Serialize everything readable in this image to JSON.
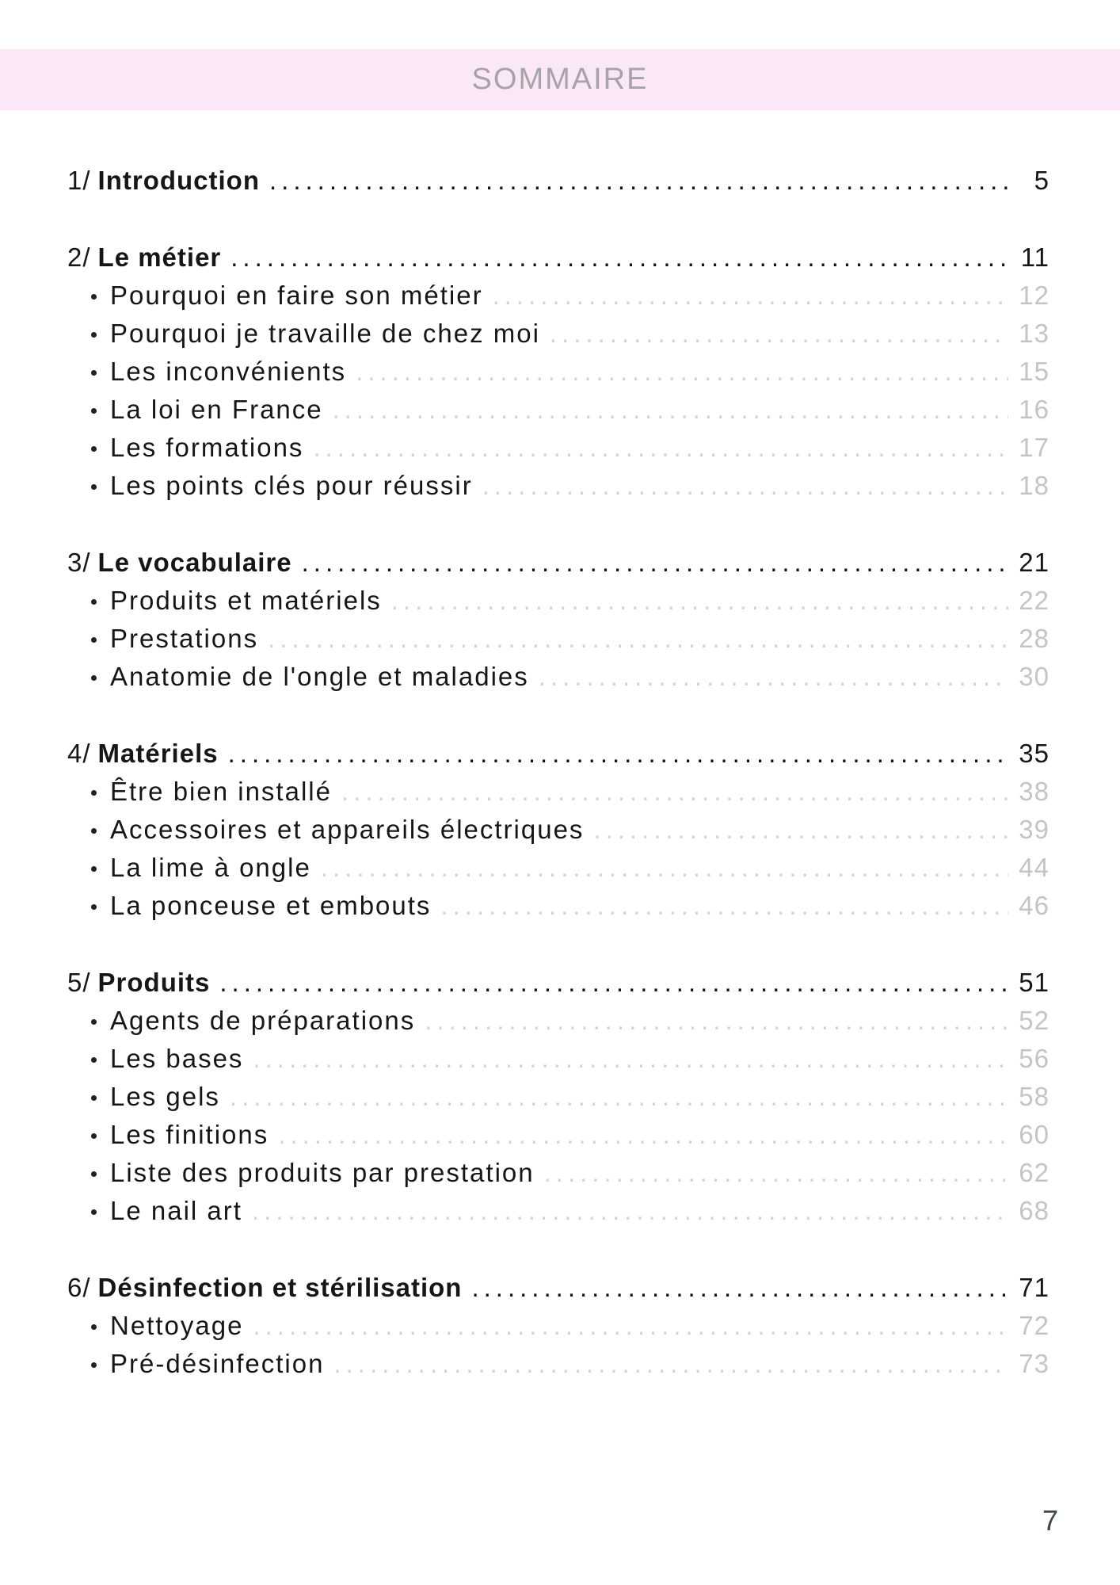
{
  "header": {
    "title": "SOMMAIRE"
  },
  "footer": {
    "page_number": "7"
  },
  "colors": {
    "band_pink": "#fae8f8",
    "header_gray": "#a7a3a7",
    "text_black": "#161616",
    "sub_dots_gray": "#d4d4d4",
    "sub_page_gray": "#c4c4c4",
    "folio_green": "#3e4b44"
  },
  "toc": {
    "sections": [
      {
        "number": "1/",
        "title": "Introduction",
        "page": "5",
        "items": []
      },
      {
        "number": "2/",
        "title": "Le métier",
        "page": "11",
        "items": [
          {
            "label": "Pourquoi en faire son métier",
            "page": "12"
          },
          {
            "label": "Pourquoi je travaille de chez moi",
            "page": "13"
          },
          {
            "label": "Les inconvénients",
            "page": "15"
          },
          {
            "label": "La loi en France",
            "page": "16"
          },
          {
            "label": "Les formations",
            "page": "17"
          },
          {
            "label": "Les points clés pour réussir",
            "page": "18"
          }
        ]
      },
      {
        "number": "3/",
        "title": "Le vocabulaire",
        "page": "21",
        "items": [
          {
            "label": "Produits et matériels",
            "page": "22"
          },
          {
            "label": "Prestations",
            "page": "28"
          },
          {
            "label": "Anatomie de l'ongle et maladies",
            "page": "30"
          }
        ]
      },
      {
        "number": "4/",
        "title": "Matériels",
        "page": "35",
        "items": [
          {
            "label": "Être bien installé",
            "page": "38"
          },
          {
            "label": "Accessoires et appareils électriques",
            "page": "39"
          },
          {
            "label": "La lime à ongle",
            "page": "44"
          },
          {
            "label": "La ponceuse et embouts",
            "page": "46"
          }
        ]
      },
      {
        "number": "5/",
        "title": "Produits",
        "page": "51",
        "items": [
          {
            "label": "Agents de préparations",
            "page": "52"
          },
          {
            "label": "Les bases",
            "page": "56"
          },
          {
            "label": "Les gels",
            "page": "58"
          },
          {
            "label": "Les finitions",
            "page": "60"
          },
          {
            "label": "Liste des produits par prestation",
            "page": "62"
          },
          {
            "label": "Le nail art",
            "page": "68"
          }
        ]
      },
      {
        "number": "6/",
        "title": "Désinfection et stérilisation",
        "page": "71",
        "items": [
          {
            "label": "Nettoyage",
            "page": "72"
          },
          {
            "label": "Pré-désinfection",
            "page": "73"
          }
        ]
      }
    ]
  }
}
